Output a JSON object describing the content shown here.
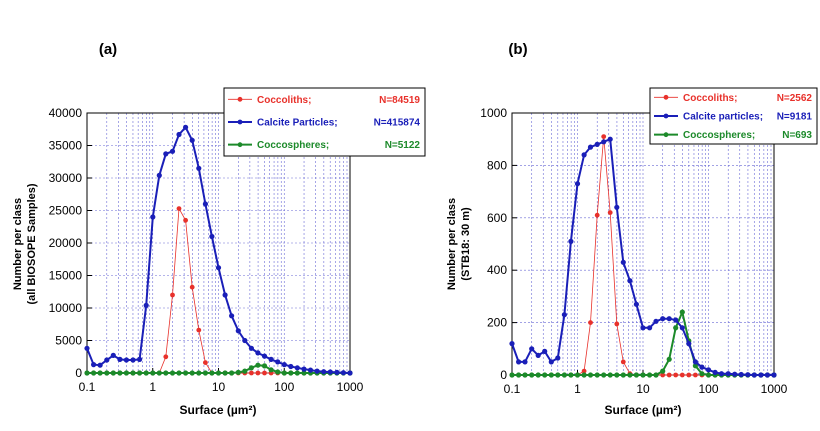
{
  "colors": {
    "coccoliths": "#e8312b",
    "calcite": "#1a1fb8",
    "coccospheres": "#1c8a2a",
    "grid": "#6b6bd6",
    "frame": "#000000"
  },
  "chart_data": [
    {
      "type": "line",
      "panel_label": "(a)",
      "xlabel": "Surface (µm²)",
      "ylabel_line1": "Number per class",
      "ylabel_line2": "(all BIOSOPE Samples)",
      "xscale": "log",
      "xlim": [
        0.1,
        1000
      ],
      "ylim": [
        0,
        40000
      ],
      "x_ticks": [
        0.1,
        1,
        10,
        100,
        1000
      ],
      "x_tick_labels": [
        "0.1",
        "1",
        "10",
        "100",
        "1000"
      ],
      "y_ticks": [
        0,
        5000,
        10000,
        15000,
        20000,
        25000,
        30000,
        35000,
        40000
      ],
      "y_tick_labels": [
        "0",
        "5000",
        "10000",
        "15000",
        "20000",
        "25000",
        "30000",
        "35000",
        "40000"
      ],
      "grid": true,
      "legend_position": "top-right",
      "series": [
        {
          "key": "coccoliths",
          "name": "Coccoliths;",
          "count": "N=84519",
          "x": [
            0.1,
            0.126,
            0.158,
            0.2,
            0.251,
            0.316,
            0.398,
            0.501,
            0.631,
            0.794,
            1,
            1.26,
            1.58,
            2,
            2.51,
            3.16,
            3.98,
            5.01,
            6.31,
            7.94,
            10,
            12.6,
            15.8,
            20,
            25.1,
            31.6,
            39.8,
            50.1,
            63.1,
            79.4,
            100,
            126,
            158,
            200,
            251,
            316,
            398,
            501,
            631,
            794,
            1000
          ],
          "y": [
            0,
            0,
            0,
            0,
            0,
            0,
            0,
            0,
            0,
            0,
            0,
            0,
            2500,
            12000,
            25300,
            23500,
            13200,
            6600,
            1600,
            0,
            0,
            0,
            0,
            0,
            0,
            0,
            0,
            0,
            0,
            0,
            0,
            0,
            0,
            0,
            0,
            0,
            0,
            0,
            0,
            0,
            0
          ]
        },
        {
          "key": "calcite",
          "name": "Calcite Particles;",
          "count": "N=415874",
          "x": [
            0.1,
            0.126,
            0.158,
            0.2,
            0.251,
            0.316,
            0.398,
            0.501,
            0.631,
            0.794,
            1,
            1.26,
            1.58,
            2,
            2.51,
            3.16,
            3.98,
            5.01,
            6.31,
            7.94,
            10,
            12.6,
            15.8,
            20,
            25.1,
            31.6,
            39.8,
            50.1,
            63.1,
            79.4,
            100,
            126,
            158,
            200,
            251,
            316,
            398,
            501,
            631,
            794,
            1000
          ],
          "y": [
            3800,
            1300,
            1200,
            2000,
            2700,
            2100,
            2000,
            2000,
            2100,
            10400,
            24000,
            30400,
            33700,
            34100,
            36700,
            37800,
            35800,
            31500,
            26000,
            21000,
            16200,
            12000,
            8800,
            6500,
            5000,
            3800,
            3100,
            2600,
            2100,
            1700,
            1300,
            1000,
            800,
            600,
            450,
            300,
            200,
            150,
            100,
            50,
            0
          ]
        },
        {
          "key": "coccospheres",
          "name": "Coccospheres;",
          "count": "N=5122",
          "x": [
            0.1,
            0.126,
            0.158,
            0.2,
            0.251,
            0.316,
            0.398,
            0.501,
            0.631,
            0.794,
            1,
            1.26,
            1.58,
            2,
            2.51,
            3.16,
            3.98,
            5.01,
            6.31,
            7.94,
            10,
            12.6,
            15.8,
            20,
            25.1,
            31.6,
            39.8,
            50.1,
            63.1,
            79.4,
            100,
            126,
            158,
            200,
            251,
            316,
            398,
            501,
            631,
            794,
            1000
          ],
          "y": [
            0,
            0,
            0,
            0,
            0,
            0,
            0,
            0,
            0,
            0,
            0,
            0,
            0,
            0,
            0,
            0,
            0,
            0,
            0,
            0,
            0,
            0,
            0,
            100,
            300,
            800,
            1200,
            1100,
            500,
            150,
            0,
            0,
            0,
            0,
            0,
            0,
            0,
            0,
            0,
            0,
            0
          ]
        }
      ]
    },
    {
      "type": "line",
      "panel_label": "(b)",
      "xlabel": "Surface (µm²)",
      "ylabel_line1": "Number per class",
      "ylabel_line2": "(STB18: 30 m)",
      "xscale": "log",
      "xlim": [
        0.1,
        1000
      ],
      "ylim": [
        0,
        1000
      ],
      "x_ticks": [
        0.1,
        1,
        10,
        100,
        1000
      ],
      "x_tick_labels": [
        "0.1",
        "1",
        "10",
        "100",
        "1000"
      ],
      "y_ticks": [
        0,
        200,
        400,
        600,
        800,
        1000
      ],
      "y_tick_labels": [
        "0",
        "200",
        "400",
        "600",
        "800",
        "1000"
      ],
      "grid": true,
      "legend_position": "top-right",
      "series": [
        {
          "key": "coccoliths",
          "name": "Coccoliths;",
          "count": "N=2562",
          "x": [
            0.1,
            0.126,
            0.158,
            0.2,
            0.251,
            0.316,
            0.398,
            0.501,
            0.631,
            0.794,
            1,
            1.26,
            1.58,
            2,
            2.51,
            3.16,
            3.98,
            5.01,
            6.31,
            7.94,
            10,
            12.6,
            15.8,
            20,
            25.1,
            31.6,
            39.8,
            50.1,
            63.1,
            79.4,
            100,
            126,
            158,
            200,
            251,
            316,
            398,
            501,
            631,
            794,
            1000
          ],
          "y": [
            0,
            0,
            0,
            0,
            0,
            0,
            0,
            0,
            0,
            0,
            0,
            15,
            200,
            610,
            910,
            620,
            195,
            50,
            5,
            0,
            0,
            0,
            0,
            0,
            0,
            0,
            0,
            0,
            0,
            0,
            0,
            0,
            0,
            0,
            0,
            0,
            0,
            0,
            0,
            0,
            0
          ]
        },
        {
          "key": "calcite",
          "name": "Calcite particles;",
          "count": "N=9181",
          "x": [
            0.1,
            0.126,
            0.158,
            0.2,
            0.251,
            0.316,
            0.398,
            0.501,
            0.631,
            0.794,
            1,
            1.26,
            1.58,
            2,
            2.51,
            3.16,
            3.98,
            5.01,
            6.31,
            7.94,
            10,
            12.6,
            15.8,
            20,
            25.1,
            31.6,
            39.8,
            50.1,
            63.1,
            79.4,
            100,
            126,
            158,
            200,
            251,
            316,
            398,
            501,
            631,
            794,
            1000
          ],
          "y": [
            120,
            50,
            50,
            100,
            75,
            90,
            50,
            65,
            230,
            510,
            730,
            840,
            870,
            880,
            890,
            900,
            640,
            430,
            360,
            270,
            180,
            180,
            205,
            215,
            215,
            210,
            180,
            120,
            50,
            30,
            20,
            10,
            5,
            5,
            3,
            2,
            1,
            0,
            0,
            0,
            0
          ]
        },
        {
          "key": "coccospheres",
          "name": "Coccospheres;",
          "count": "N=693",
          "x": [
            0.1,
            0.126,
            0.158,
            0.2,
            0.251,
            0.316,
            0.398,
            0.501,
            0.631,
            0.794,
            1,
            1.26,
            1.58,
            2,
            2.51,
            3.16,
            3.98,
            5.01,
            6.31,
            7.94,
            10,
            12.6,
            15.8,
            20,
            25.1,
            31.6,
            39.8,
            50.1,
            63.1,
            79.4,
            100,
            126,
            158,
            200,
            251,
            316,
            398,
            501,
            631,
            794,
            1000
          ],
          "y": [
            0,
            0,
            0,
            0,
            0,
            0,
            0,
            0,
            0,
            0,
            0,
            0,
            0,
            0,
            0,
            0,
            0,
            0,
            0,
            0,
            0,
            0,
            0,
            15,
            60,
            180,
            240,
            130,
            35,
            5,
            0,
            0,
            0,
            0,
            0,
            0,
            0,
            0,
            0,
            0,
            0
          ]
        }
      ]
    }
  ]
}
